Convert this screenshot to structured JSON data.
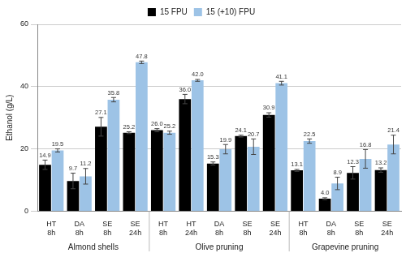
{
  "chart_data": {
    "type": "bar",
    "y_label": "Ethanol (g/L)",
    "categories": [
      "HT 8h",
      "DA 8h",
      "SE 8h",
      "SE 24h",
      "HT 8h",
      "HT 24h",
      "DA 8h",
      "SE 8h",
      "SE 24h",
      "HT 8h",
      "DA 8h",
      "SE 8h",
      "SE 24h"
    ],
    "groups": [
      "Almond shells",
      "Almond shells",
      "Almond shells",
      "Almond shells",
      "Olive pruning",
      "Olive pruning",
      "Olive pruning",
      "Olive pruning",
      "Olive pruning",
      "Grapevine pruning",
      "Grapevine pruning",
      "Grapevine pruning",
      "Grapevine pruning"
    ],
    "series": [
      {
        "name": "15 FPU",
        "color": "#000000",
        "values": [
          14.9,
          9.7,
          27.1,
          25.2,
          26.0,
          36.0,
          15.3,
          24.1,
          30.9,
          13.1,
          4.0,
          12.3,
          13.2
        ],
        "value_labels": [
          "14.9",
          "9.7",
          "27.1",
          "25.2",
          "26.0",
          "36.0",
          "15.3",
          "24.1",
          "30.9",
          "13.1",
          "4.0",
          "12.3",
          "13.2"
        ],
        "errors": [
          1.5,
          2.5,
          3.0,
          0.3,
          0.5,
          1.5,
          0.5,
          0.3,
          0.7,
          0.3,
          0.3,
          2.0,
          0.7
        ]
      },
      {
        "name": "15 (+10) FPU",
        "color": "#9dc3e6",
        "values": [
          19.5,
          11.2,
          35.8,
          47.8,
          25.2,
          42.0,
          19.9,
          20.7,
          41.1,
          22.5,
          8.9,
          16.8,
          21.4
        ],
        "value_labels": [
          "19.5",
          "11.2",
          "35.8",
          "47.8",
          "25.2",
          "42.0",
          "19.9",
          "20.7",
          "41.1",
          "22.5",
          "8.9",
          "16.8",
          "21.4"
        ],
        "errors": [
          0.5,
          2.5,
          0.7,
          0.4,
          0.5,
          0.3,
          1.5,
          2.5,
          0.6,
          0.7,
          2.0,
          3.0,
          3.0
        ]
      }
    ],
    "ylim": [
      0,
      60
    ],
    "yticks": [
      0,
      20,
      40,
      60
    ],
    "grid": true,
    "legend": "top",
    "data_labels": true
  }
}
